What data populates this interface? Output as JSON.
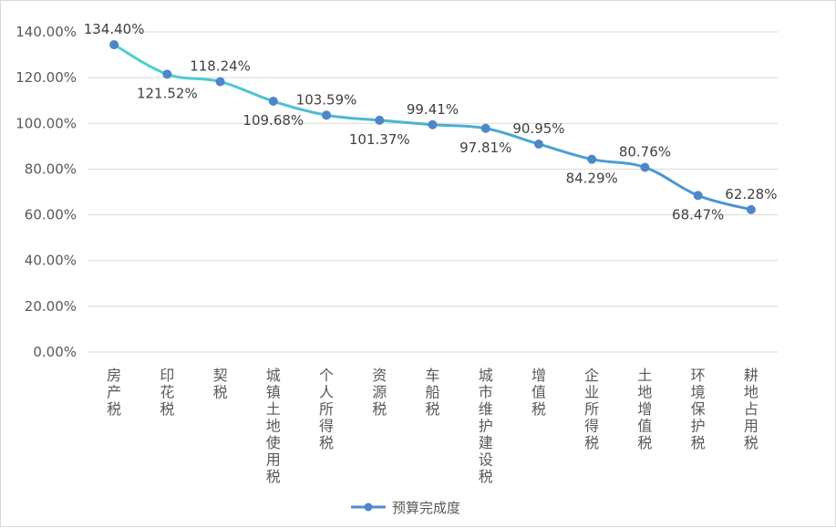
{
  "chart_data": {
    "type": "line",
    "categories": [
      "房产税",
      "印花税",
      "契税",
      "城镇土地使用税",
      "个人所得税",
      "资源税",
      "车船税",
      "城市维护建设税",
      "增值税",
      "企业所得税",
      "土地增值税",
      "环境保护税",
      "耕地占用税"
    ],
    "series": [
      {
        "name": "预算完成度",
        "values": [
          134.4,
          121.52,
          118.24,
          109.68,
          103.59,
          101.37,
          99.41,
          97.81,
          90.95,
          84.29,
          80.76,
          68.47,
          62.28
        ],
        "labels": [
          "134.40%",
          "121.52%",
          "118.24%",
          "109.68%",
          "103.59%",
          "101.37%",
          "99.41%",
          "97.81%",
          "90.95%",
          "84.29%",
          "80.76%",
          "68.47%",
          "62.28%"
        ]
      }
    ],
    "yticks": [
      "0.00%",
      "20.00%",
      "40.00%",
      "60.00%",
      "80.00%",
      "100.00%",
      "120.00%",
      "140.00%"
    ],
    "ylim": [
      0,
      140
    ],
    "grid": true,
    "legend_position": "bottom",
    "colors": {
      "line_start": "#4ed2d2",
      "line_end": "#4a8fd2",
      "marker": "#4f86c6",
      "grid": "#d9d9d9",
      "axis_text": "#595959"
    }
  }
}
